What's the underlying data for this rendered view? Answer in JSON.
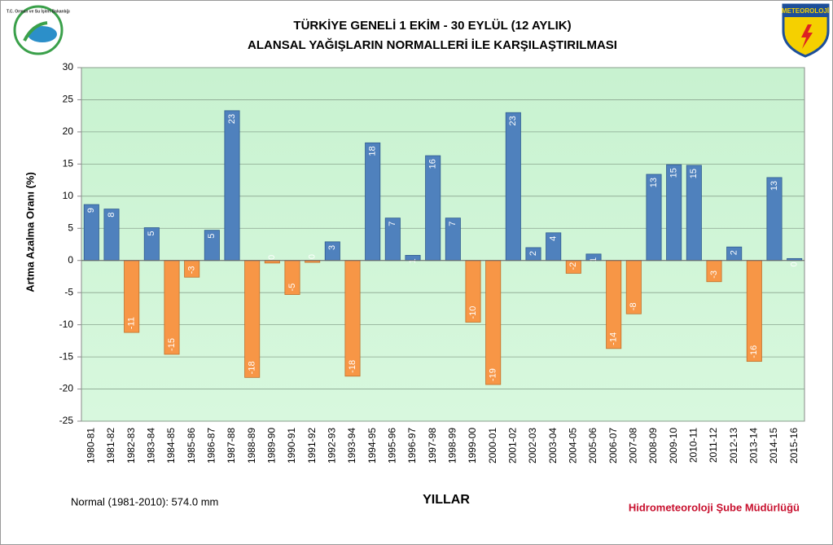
{
  "chart_data": {
    "type": "bar",
    "title": "TÜRKİYE GENELİ  1 EKİM - 30 EYLÜL (12 AYLIK)",
    "subtitle": "ALANSAL YAĞIŞLARIN NORMALLERİ İLE KARŞILAŞTIRILMASI",
    "y_label": "Artma Azalma Oranı (%)",
    "x_label": "YILLAR",
    "note": "Normal (1981-2010): 574.0 mm",
    "footer": "Hidrometeoroloji Şube Müdürlüğü",
    "logo_left": "T.C. Orman ve Su İşleri Bakanlığı",
    "logo_right": "METEOROLOJİ",
    "categories": [
      "1980-81",
      "1981-82",
      "1982-83",
      "1983-84",
      "1984-85",
      "1985-86",
      "1986-87",
      "1987-88",
      "1988-89",
      "1989-90",
      "1990-91",
      "1991-92",
      "1992-93",
      "1993-94",
      "1994-95",
      "1995-96",
      "1996-97",
      "1997-98",
      "1998-99",
      "1999-00",
      "2000-01",
      "2001-02",
      "2002-03",
      "2003-04",
      "2004-05",
      "2005-06",
      "2006-07",
      "2007-08",
      "2008-09",
      "2009-10",
      "2010-11",
      "2011-12",
      "2012-13",
      "2013-14",
      "2014-15",
      "2015-16"
    ],
    "values": [
      8.7,
      8.0,
      -11.2,
      5.1,
      -14.6,
      -2.6,
      4.7,
      23.3,
      -18.2,
      -0.4,
      -5.3,
      -0.3,
      2.9,
      -18.0,
      18.3,
      6.6,
      0.8,
      16.3,
      6.6,
      -9.6,
      -19.3,
      23.0,
      2.0,
      4.3,
      -2.0,
      1.0,
      -13.7,
      -8.3,
      13.4,
      14.9,
      14.8,
      -3.3,
      2.1,
      -15.7,
      12.9,
      0.3
    ],
    "value_labels": [
      "9",
      "8",
      "-11",
      "5",
      "-15",
      "-3",
      "5",
      "23",
      "-18",
      "0",
      "-5",
      "0",
      "3",
      "-18",
      "18",
      "7",
      "1",
      "16",
      "7",
      "-10",
      "-19",
      "23",
      "2",
      "4",
      "-2",
      "1",
      "-14",
      "-8",
      "13",
      "15",
      "15",
      "-3",
      "2",
      "-16",
      "13",
      "0"
    ],
    "color": "#4f81bd",
    "negative_color": "#f79646",
    "ylim": [
      -25,
      30
    ],
    "yticks": [
      -25,
      -20,
      -15,
      -10,
      -5,
      0,
      5,
      10,
      15,
      20,
      25,
      30
    ],
    "grid": true
  }
}
